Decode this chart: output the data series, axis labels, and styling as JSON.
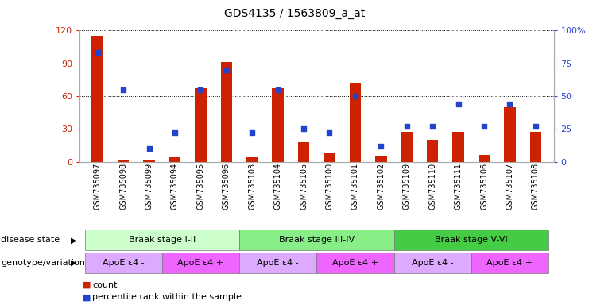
{
  "title": "GDS4135 / 1563809_a_at",
  "samples": [
    "GSM735097",
    "GSM735098",
    "GSM735099",
    "GSM735094",
    "GSM735095",
    "GSM735096",
    "GSM735103",
    "GSM735104",
    "GSM735105",
    "GSM735100",
    "GSM735101",
    "GSM735102",
    "GSM735109",
    "GSM735110",
    "GSM735111",
    "GSM735106",
    "GSM735107",
    "GSM735108"
  ],
  "counts": [
    115,
    1,
    1,
    4,
    67,
    91,
    4,
    67,
    18,
    8,
    72,
    5,
    27,
    20,
    27,
    6,
    50,
    27
  ],
  "percentiles": [
    83,
    55,
    10,
    22,
    55,
    70,
    22,
    55,
    25,
    22,
    50,
    12,
    27,
    27,
    44,
    27,
    44,
    27
  ],
  "ylim_left": [
    0,
    120
  ],
  "ylim_right": [
    0,
    100
  ],
  "yticks_left": [
    0,
    30,
    60,
    90,
    120
  ],
  "yticks_right": [
    0,
    25,
    50,
    75,
    100
  ],
  "ytick_labels_right": [
    "0",
    "25",
    "50",
    "75",
    "100%"
  ],
  "bar_color": "#cc2200",
  "dot_color": "#2244cc",
  "disease_state_groups": [
    {
      "label": "Braak stage I-II",
      "start": 0,
      "end": 6,
      "color": "#ccffcc"
    },
    {
      "label": "Braak stage III-IV",
      "start": 6,
      "end": 12,
      "color": "#88ee88"
    },
    {
      "label": "Braak stage V-VI",
      "start": 12,
      "end": 18,
      "color": "#44cc44"
    }
  ],
  "genotype_groups": [
    {
      "label": "ApoE ε4 -",
      "start": 0,
      "end": 3,
      "color": "#ddaaff"
    },
    {
      "label": "ApoE ε4 +",
      "start": 3,
      "end": 6,
      "color": "#ee66ff"
    },
    {
      "label": "ApoE ε4 -",
      "start": 6,
      "end": 9,
      "color": "#ddaaff"
    },
    {
      "label": "ApoE ε4 +",
      "start": 9,
      "end": 12,
      "color": "#ee66ff"
    },
    {
      "label": "ApoE ε4 -",
      "start": 12,
      "end": 15,
      "color": "#ddaaff"
    },
    {
      "label": "ApoE ε4 +",
      "start": 15,
      "end": 18,
      "color": "#ee66ff"
    }
  ],
  "legend_count_color": "#cc2200",
  "legend_dot_color": "#2244cc",
  "bg_color": "#ffffff",
  "grid_color": "#000000",
  "label_disease": "disease state",
  "label_genotype": "genotype/variation",
  "left_axis_color": "#cc2200",
  "right_axis_color": "#2244cc"
}
